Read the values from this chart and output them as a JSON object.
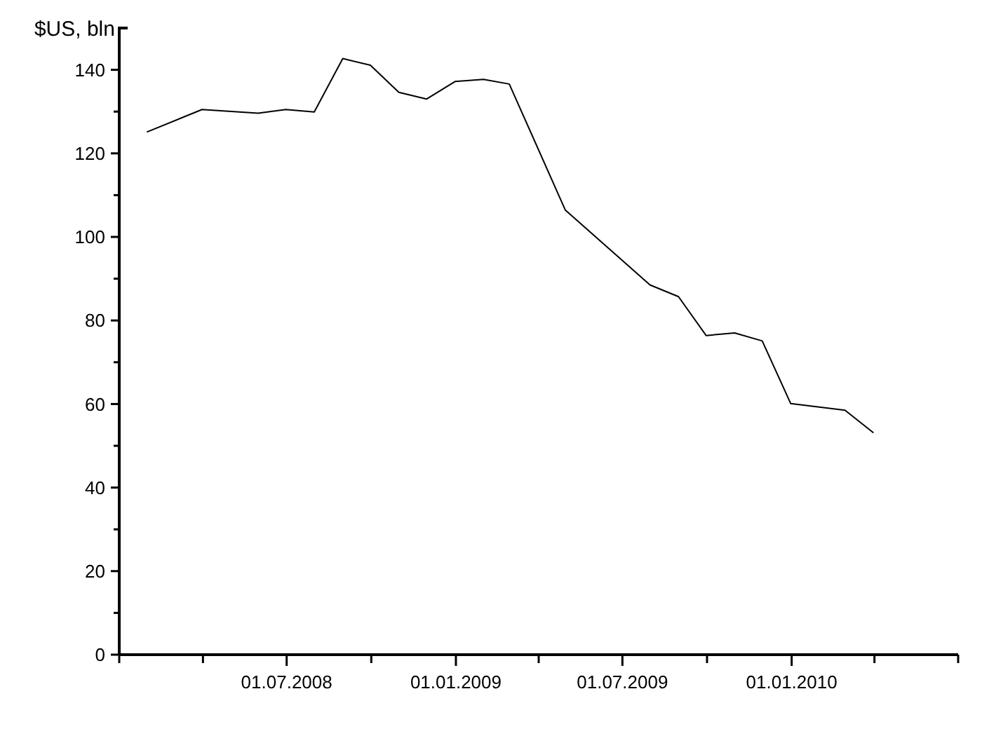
{
  "chart_data": {
    "type": "line",
    "ylabel": "$US, bln",
    "x": [
      "2008-01-31",
      "2008-03-31",
      "2008-05-31",
      "2008-06-30",
      "2008-07-31",
      "2008-08-31",
      "2008-09-30",
      "2008-10-31",
      "2008-11-30",
      "2008-12-31",
      "2009-01-31",
      "2009-02-28",
      "2009-04-30",
      "2009-07-31",
      "2009-08-31",
      "2009-09-30",
      "2009-10-31",
      "2009-11-30",
      "2009-12-31",
      "2010-02-28",
      "2010-03-31"
    ],
    "series": [
      {
        "color": "#000000",
        "values": [
          125.1,
          130.5,
          129.6,
          130.5,
          129.9,
          142.7,
          141.1,
          134.6,
          133,
          137.2,
          137.7,
          136.6,
          106.4,
          88.5,
          85.7,
          76.4,
          77,
          75.1,
          60.1,
          58.5,
          53.1
        ]
      }
    ],
    "xlim": [
      "2008-01-01",
      "2010-07-01"
    ],
    "xticks": [
      {
        "value": "2008-01-01",
        "label": null
      },
      {
        "value": "2008-04-01",
        "label": null
      },
      {
        "value": "2008-07-01",
        "label": "01.07.2008"
      },
      {
        "value": "2008-10-01",
        "label": null
      },
      {
        "value": "2009-01-01",
        "label": "01.01.2009"
      },
      {
        "value": "2009-04-01",
        "label": null
      },
      {
        "value": "2009-07-01",
        "label": "01.07.2009"
      },
      {
        "value": "2009-10-01",
        "label": null
      },
      {
        "value": "2010-01-01",
        "label": "01.01.2010"
      },
      {
        "value": "2010-04-01",
        "label": null
      },
      {
        "value": "2010-07-01",
        "label": null
      }
    ],
    "ylim": [
      0,
      150
    ],
    "yticks": [
      0,
      {
        "value": 10,
        "label": null
      },
      20,
      {
        "value": 30,
        "label": null
      },
      40,
      {
        "value": 50,
        "label": null
      },
      60,
      {
        "value": 70,
        "label": null
      },
      80,
      {
        "value": 90,
        "label": null
      },
      100,
      {
        "value": 110,
        "label": null
      },
      120,
      {
        "value": 130,
        "label": null
      },
      140
    ],
    "grid": false,
    "marker": "none",
    "line_style": "solid"
  }
}
